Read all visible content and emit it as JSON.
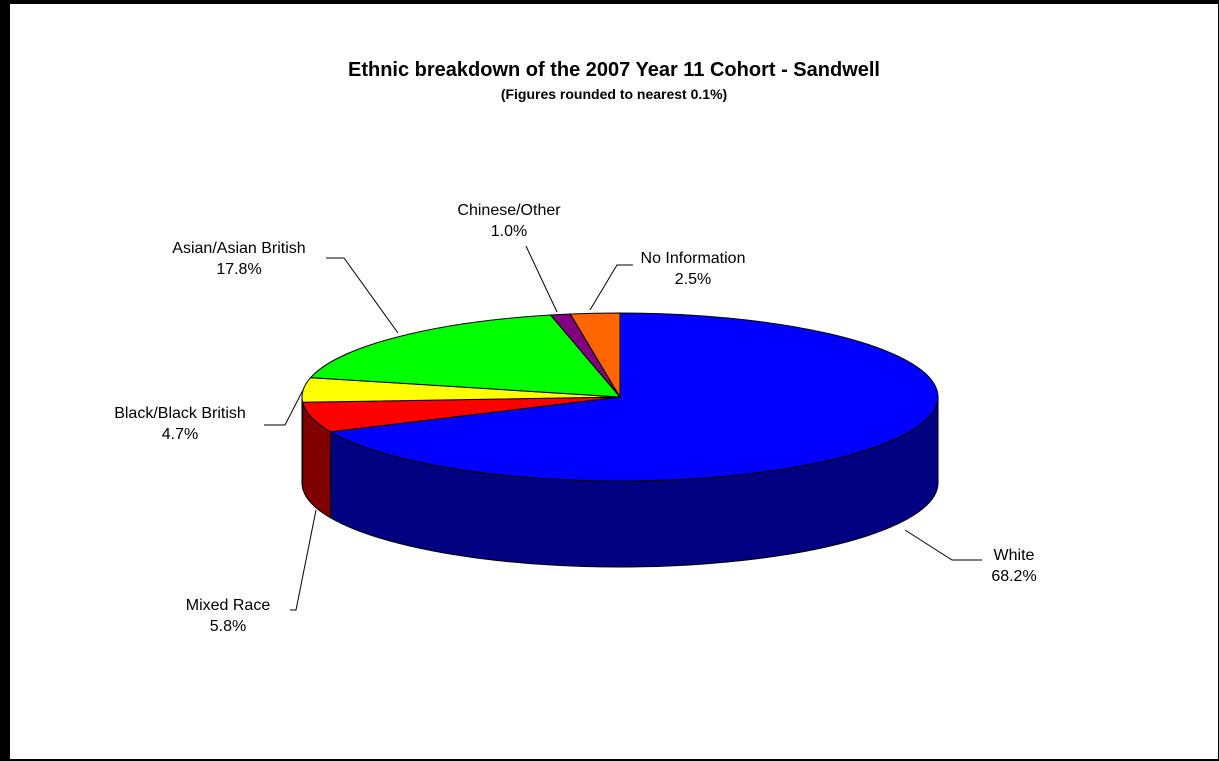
{
  "chart_data": {
    "type": "pie",
    "style": "3d",
    "title": "Ethnic breakdown of the 2007 Year 11 Cohort - Sandwell",
    "subtitle": "(Figures rounded to nearest 0.1%)",
    "slices": [
      {
        "label": "White",
        "value": 68.2,
        "value_label": "68.2%",
        "color": "#0000ff",
        "side_color": "#000080"
      },
      {
        "label": "Mixed Race",
        "value": 5.8,
        "value_label": "5.8%",
        "color": "#ff0000",
        "side_color": "#800000"
      },
      {
        "label": "Black/Black British",
        "value": 4.7,
        "value_label": "4.7%",
        "color": "#ffff00",
        "side_color": "#808000"
      },
      {
        "label": "Asian/Asian British",
        "value": 17.8,
        "value_label": "17.8%",
        "color": "#00ff00",
        "side_color": "#008000"
      },
      {
        "label": "Chinese/Other",
        "value": 1.0,
        "value_label": "1.0%",
        "color": "#800080",
        "side_color": "#400040"
      },
      {
        "label": "No Information",
        "value": 2.5,
        "value_label": "2.5%",
        "color": "#ff6600",
        "side_color": "#803300"
      }
    ],
    "legend": "none"
  }
}
